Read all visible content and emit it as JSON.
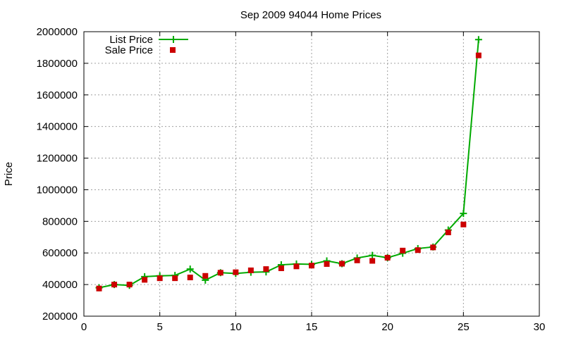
{
  "chart_data": {
    "type": "line",
    "title": "Sep 2009 94044 Home Prices",
    "xlabel": "",
    "ylabel": "Price",
    "xlim": [
      0,
      30
    ],
    "ylim": [
      200000,
      2000000
    ],
    "xticks": [
      "0",
      "5",
      "10",
      "15",
      "20",
      "25",
      "30"
    ],
    "yticks": [
      "200000",
      "400000",
      "600000",
      "800000",
      "1000000",
      "1200000",
      "1400000",
      "1600000",
      "1800000",
      "2000000"
    ],
    "grid": true,
    "legend_position": "top-left",
    "series": [
      {
        "name": "List Price",
        "style": "line-plus",
        "color": "#00aa00",
        "x": [
          1,
          2,
          3,
          4,
          5,
          6,
          7,
          8,
          9,
          10,
          11,
          12,
          13,
          14,
          15,
          16,
          17,
          18,
          19,
          20,
          21,
          22,
          23,
          24,
          25,
          26
        ],
        "y": [
          380000,
          400000,
          395000,
          450000,
          455000,
          458000,
          498000,
          428000,
          475000,
          470000,
          478000,
          480000,
          525000,
          530000,
          528000,
          550000,
          532000,
          568000,
          585000,
          570000,
          598000,
          628000,
          638000,
          745000,
          850000,
          1950000
        ]
      },
      {
        "name": "Sale Price",
        "style": "square-marker",
        "color": "#cc0000",
        "x": [
          1,
          2,
          3,
          4,
          5,
          6,
          7,
          8,
          9,
          10,
          11,
          12,
          13,
          14,
          15,
          16,
          17,
          18,
          19,
          20,
          21,
          22,
          23,
          24,
          25,
          26
        ],
        "y": [
          375000,
          400000,
          400000,
          430000,
          440000,
          440000,
          445000,
          455000,
          475000,
          478000,
          490000,
          498000,
          503000,
          515000,
          520000,
          530000,
          532000,
          553000,
          550000,
          570000,
          615000,
          618000,
          635000,
          730000,
          780000,
          1850000
        ]
      }
    ]
  }
}
